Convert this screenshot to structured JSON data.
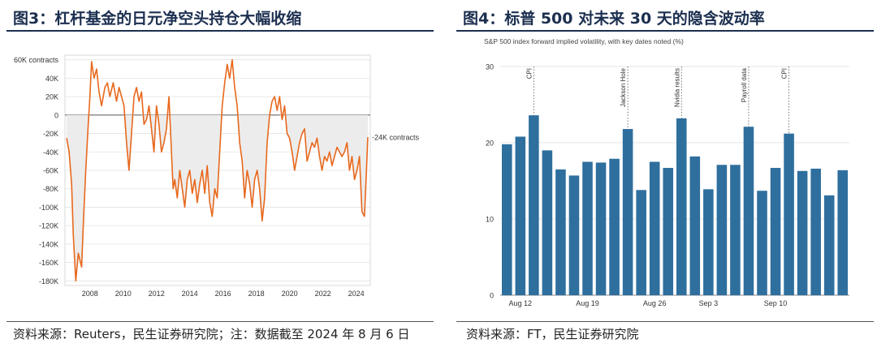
{
  "left_panel": {
    "title": "图3：杠杆基金的日元净空头持仓大幅收缩",
    "source": "资料来源：Reuters，民生证券研究院；注：数据截至 2024 年 8 月 6 日"
  },
  "right_panel": {
    "title": "图4：标普 500 对未来 30 天的隐含波动率",
    "source": "资料来源：FT，民生证券研究院"
  },
  "chart_data": [
    {
      "type": "line",
      "title": "",
      "xlabel": "",
      "ylabel": "",
      "y_tick_labels": [
        "60K contracts",
        "40K",
        "20K",
        "0",
        "-20K",
        "-40K",
        "-60K",
        "-80K",
        "-100K",
        "-120K",
        "-140K",
        "-160K",
        "-180K"
      ],
      "y_ticks": [
        60000,
        40000,
        20000,
        0,
        -20000,
        -40000,
        -60000,
        -80000,
        -100000,
        -120000,
        -140000,
        -160000,
        -180000
      ],
      "x_tick_labels": [
        "2008",
        "2010",
        "2012",
        "2014",
        "2016",
        "2018",
        "2020",
        "2022",
        "2024"
      ],
      "x_ticks": [
        2008,
        2010,
        2012,
        2014,
        2016,
        2018,
        2020,
        2022,
        2024
      ],
      "xlim": [
        2006.5,
        2024.85
      ],
      "ylim": [
        -185000,
        65000
      ],
      "annotation": "-24K contracts",
      "line_color": "#e8681d",
      "fill_color": "#ececec",
      "series": [
        {
          "x": [
            2006.6,
            2006.75,
            2006.9,
            2007.0,
            2007.15,
            2007.3,
            2007.5,
            2007.6,
            2007.75,
            2007.9,
            2008.0,
            2008.1,
            2008.25,
            2008.4,
            2008.55,
            2008.7,
            2008.9,
            2009.05,
            2009.2,
            2009.4,
            2009.6,
            2009.75,
            2009.9,
            2010.05,
            2010.2,
            2010.35,
            2010.5,
            2010.65,
            2010.8,
            2010.95,
            2011.1,
            2011.25,
            2011.4,
            2011.55,
            2011.7,
            2011.85,
            2012.0,
            2012.15,
            2012.3,
            2012.45,
            2012.6,
            2012.75,
            2012.9,
            2013.0,
            2013.1,
            2013.25,
            2013.4,
            2013.55,
            2013.7,
            2013.85,
            2014.0,
            2014.15,
            2014.3,
            2014.45,
            2014.6,
            2014.75,
            2014.9,
            2015.05,
            2015.2,
            2015.35,
            2015.5,
            2015.65,
            2015.8,
            2015.95,
            2016.1,
            2016.25,
            2016.4,
            2016.55,
            2016.7,
            2016.85,
            2017.0,
            2017.15,
            2017.3,
            2017.45,
            2017.6,
            2017.75,
            2017.9,
            2018.05,
            2018.2,
            2018.35,
            2018.5,
            2018.65,
            2018.8,
            2018.95,
            2019.1,
            2019.25,
            2019.4,
            2019.55,
            2019.7,
            2019.85,
            2020.0,
            2020.15,
            2020.3,
            2020.45,
            2020.6,
            2020.75,
            2020.9,
            2021.05,
            2021.2,
            2021.35,
            2021.5,
            2021.65,
            2021.8,
            2021.95,
            2022.1,
            2022.25,
            2022.4,
            2022.55,
            2022.7,
            2022.85,
            2023.0,
            2023.15,
            2023.3,
            2023.45,
            2023.6,
            2023.75,
            2023.9,
            2024.05,
            2024.2,
            2024.35,
            2024.5,
            2024.62,
            2024.7
          ],
          "y": [
            -25000,
            -40000,
            -75000,
            -130000,
            -180000,
            -150000,
            -165000,
            -120000,
            -60000,
            -10000,
            20000,
            58000,
            40000,
            50000,
            25000,
            10000,
            30000,
            35000,
            20000,
            35000,
            15000,
            30000,
            20000,
            10000,
            -30000,
            -60000,
            -20000,
            20000,
            30000,
            15000,
            25000,
            -10000,
            -5000,
            10000,
            -15000,
            -40000,
            10000,
            -10000,
            -40000,
            -30000,
            -15000,
            20000,
            -40000,
            -80000,
            -70000,
            -90000,
            -60000,
            -80000,
            -100000,
            -70000,
            -60000,
            -85000,
            -70000,
            -95000,
            -75000,
            -60000,
            -85000,
            -55000,
            -95000,
            -110000,
            -80000,
            -90000,
            -40000,
            10000,
            35000,
            55000,
            40000,
            60000,
            30000,
            10000,
            -30000,
            -50000,
            -90000,
            -60000,
            -75000,
            -100000,
            -70000,
            -60000,
            -80000,
            -115000,
            -90000,
            -30000,
            0,
            15000,
            20000,
            5000,
            20000,
            -5000,
            10000,
            -20000,
            -25000,
            -40000,
            -60000,
            -45000,
            -30000,
            -20000,
            -15000,
            -50000,
            -40000,
            -30000,
            -35000,
            -25000,
            -45000,
            -60000,
            -45000,
            -50000,
            -40000,
            -55000,
            -45000,
            -35000,
            -40000,
            -45000,
            -40000,
            -30000,
            -60000,
            -45000,
            -70000,
            -60000,
            -45000,
            -105000,
            -110000,
            -60000,
            -24000
          ]
        }
      ]
    },
    {
      "type": "bar",
      "title": "S&P 500 index forward implied volatility, with key dates noted (%)",
      "xlabel": "",
      "ylabel": "",
      "ylim": [
        0,
        30
      ],
      "y_ticks": [
        0,
        10,
        20,
        30
      ],
      "x_tick_labels": [
        "Aug 12",
        "Aug 19",
        "Aug 26",
        "Sep 3",
        "Sep 10"
      ],
      "x_tick_positions": [
        1,
        6,
        11,
        15,
        20
      ],
      "bar_color": "#2e6f9e",
      "values": [
        19.8,
        20.8,
        23.6,
        19.0,
        16.5,
        15.7,
        17.5,
        17.4,
        17.9,
        21.8,
        13.8,
        17.5,
        16.7,
        23.2,
        18.2,
        13.9,
        17.1,
        17.1,
        22.1,
        13.7,
        16.7,
        21.2,
        16.3,
        16.6,
        13.1,
        16.4
      ],
      "annotations": [
        {
          "label": "CPI",
          "bar_index": 2
        },
        {
          "label": "Jackson Hole",
          "bar_index": 9
        },
        {
          "label": "Nvidia results",
          "bar_index": 13
        },
        {
          "label": "Payroll data",
          "bar_index": 18
        },
        {
          "label": "CPI",
          "bar_index": 21
        }
      ]
    }
  ]
}
